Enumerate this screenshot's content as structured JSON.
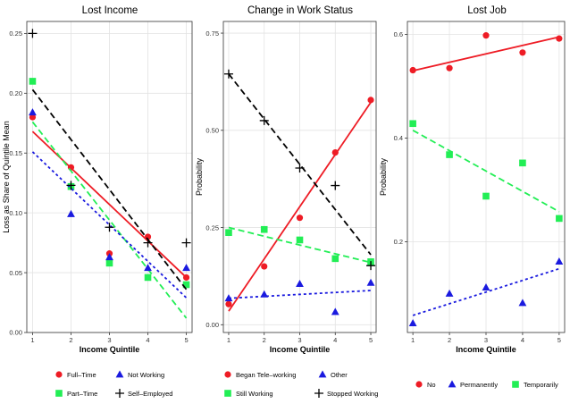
{
  "colors": {
    "red": "#ee1c25",
    "blue": "#1a1adf",
    "green": "#22ee55",
    "black": "#000000",
    "axis": "#333333"
  },
  "chart_data": [
    {
      "type": "scatter",
      "title": "Lost Income",
      "xlabel": "Income Quintile",
      "ylabel": "Loss as Share of Quintile Mean",
      "xlim": [
        0.85,
        5.15
      ],
      "ylim": [
        0,
        0.26
      ],
      "xticks": [
        1,
        2,
        3,
        4,
        5
      ],
      "yticks": [
        0.0,
        0.05,
        0.1,
        0.15,
        0.2,
        0.25
      ],
      "ytick_labels": [
        "0.00",
        "0.05",
        "0.10",
        "0.15",
        "0.20",
        "0.25"
      ],
      "grid": true,
      "legend": "bottom",
      "legend_columns": 2,
      "series": [
        {
          "name": "Full–Time",
          "marker": "circle",
          "color": "red",
          "line_style": "solid",
          "x": [
            1,
            2,
            3,
            4,
            5
          ],
          "values": [
            0.18,
            0.138,
            0.066,
            0.08,
            0.046
          ],
          "fit": [
            0.168,
            0.046
          ]
        },
        {
          "name": "Part–Time",
          "marker": "square",
          "color": "green",
          "line_style": "dashed",
          "x": [
            1,
            2,
            3,
            4,
            5
          ],
          "values": [
            0.21,
            0.122,
            0.058,
            0.046,
            0.04
          ],
          "fit": [
            0.176,
            0.012
          ]
        },
        {
          "name": "Not Working",
          "marker": "triangle",
          "color": "blue",
          "line_style": "dotted",
          "x": [
            1,
            2,
            3,
            4,
            5
          ],
          "values": [
            0.184,
            0.099,
            0.063,
            0.054,
            0.054
          ],
          "fit": [
            0.151,
            0.029
          ]
        },
        {
          "name": "Self–Employed",
          "marker": "plus",
          "color": "black",
          "line_style": "dashed",
          "x": [
            1,
            2,
            3,
            4,
            5
          ],
          "values": [
            0.25,
            0.123,
            0.088,
            0.075,
            0.075
          ],
          "fit": [
            0.203,
            0.036
          ]
        }
      ]
    },
    {
      "type": "scatter",
      "title": "Change in Work Status",
      "xlabel": "Income Quintile",
      "ylabel": "Probability",
      "xlim": [
        0.85,
        5.15
      ],
      "ylim": [
        -0.02,
        0.78
      ],
      "xticks": [
        1,
        2,
        3,
        4,
        5
      ],
      "yticks": [
        0.0,
        0.25,
        0.5,
        0.75
      ],
      "ytick_labels": [
        "0.00",
        "0.25",
        "0.50",
        "0.75"
      ],
      "grid": true,
      "legend": "bottom",
      "legend_columns": 2,
      "series": [
        {
          "name": "Began Tele–working",
          "marker": "circle",
          "color": "red",
          "line_style": "solid",
          "x": [
            1,
            2,
            3,
            4,
            5
          ],
          "values": [
            0.053,
            0.15,
            0.275,
            0.443,
            0.578
          ],
          "fit": [
            0.035,
            0.572
          ]
        },
        {
          "name": "Still Working",
          "marker": "square",
          "color": "green",
          "line_style": "dashed",
          "x": [
            1,
            2,
            3,
            4,
            5
          ],
          "values": [
            0.237,
            0.245,
            0.218,
            0.17,
            0.162
          ],
          "fit": [
            0.25,
            0.16
          ]
        },
        {
          "name": "Other",
          "marker": "triangle",
          "color": "blue",
          "line_style": "dotted",
          "x": [
            1,
            2,
            3,
            4,
            5
          ],
          "values": [
            0.068,
            0.078,
            0.105,
            0.033,
            0.108
          ],
          "fit": [
            0.068,
            0.088
          ]
        },
        {
          "name": "Stopped Working",
          "marker": "plus",
          "color": "black",
          "line_style": "dashed",
          "x": [
            1,
            2,
            3,
            4,
            5
          ],
          "values": [
            0.645,
            0.525,
            0.403,
            0.358,
            0.152
          ],
          "fit": [
            0.645,
            0.18
          ]
        }
      ]
    },
    {
      "type": "scatter",
      "title": "Lost Job",
      "xlabel": "Income Quintile",
      "ylabel": "Probability",
      "xlim": [
        0.85,
        5.15
      ],
      "ylim": [
        0.025,
        0.625
      ],
      "xticks": [
        1,
        2,
        3,
        4,
        5
      ],
      "yticks": [
        0.2,
        0.4,
        0.6
      ],
      "ytick_labels": [
        "0.2",
        "0.4",
        "0.6"
      ],
      "grid": true,
      "legend": "bottom",
      "legend_columns": 3,
      "series": [
        {
          "name": "No",
          "marker": "circle",
          "color": "red",
          "line_style": "solid",
          "x": [
            1,
            2,
            3,
            4,
            5
          ],
          "values": [
            0.531,
            0.535,
            0.598,
            0.565,
            0.592
          ],
          "fit": [
            0.53,
            0.595
          ]
        },
        {
          "name": "Permanently",
          "marker": "triangle",
          "color": "blue",
          "line_style": "dotted",
          "x": [
            1,
            2,
            3,
            4,
            5
          ],
          "values": [
            0.043,
            0.1,
            0.112,
            0.082,
            0.162
          ],
          "fit": [
            0.058,
            0.148
          ]
        },
        {
          "name": "Temporarily",
          "marker": "square",
          "color": "green",
          "line_style": "dashed",
          "x": [
            1,
            2,
            3,
            4,
            5
          ],
          "values": [
            0.428,
            0.368,
            0.288,
            0.352,
            0.245
          ],
          "fit": [
            0.415,
            0.258
          ]
        }
      ]
    }
  ]
}
